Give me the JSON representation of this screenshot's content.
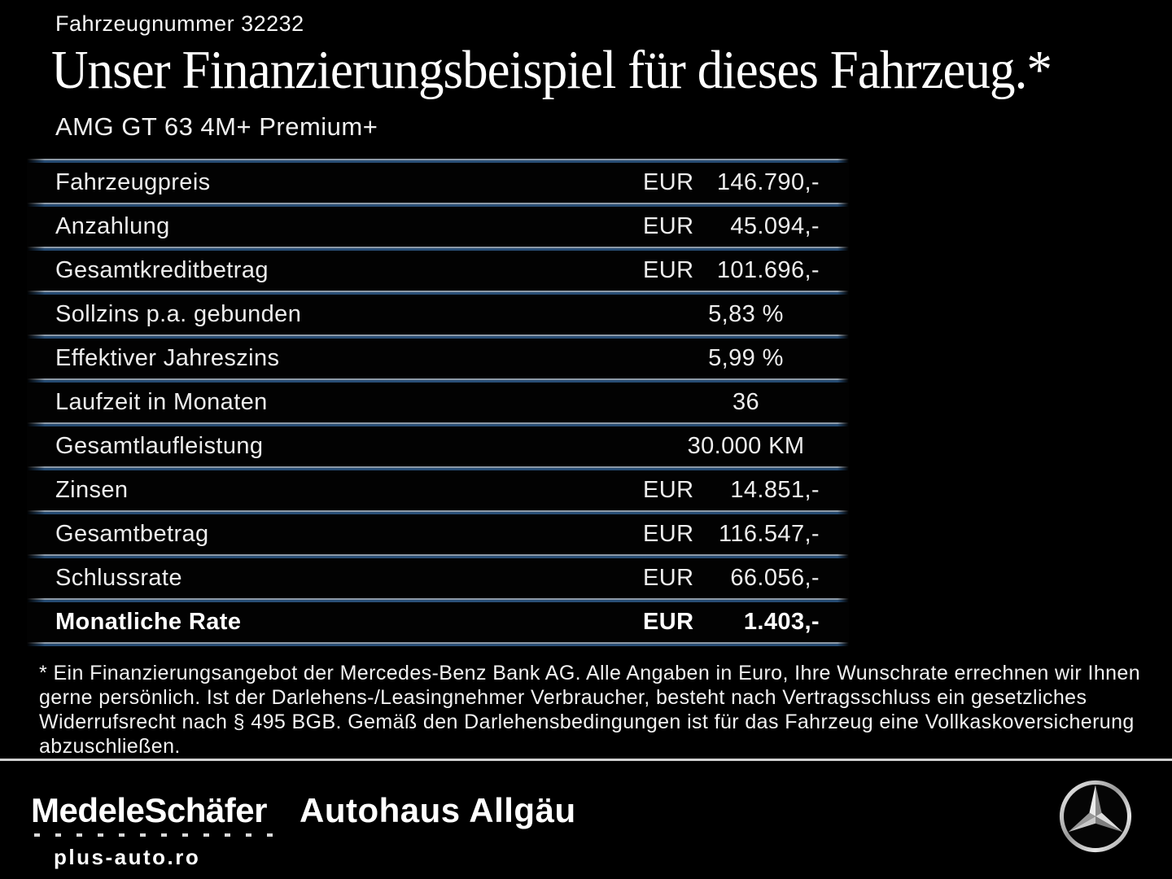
{
  "page": {
    "vehicle_number": "Fahrzeugnummer 32232",
    "title": "Unser Finanzierungsbeispiel für dieses Fahrzeug.*",
    "model": "AMG GT 63 4M+ Premium+"
  },
  "financing_table": {
    "rows": [
      {
        "label": "Fahrzeugpreis",
        "currency": "EUR",
        "value": "146.790,-",
        "emphasis": false
      },
      {
        "label": "Anzahlung",
        "currency": "EUR",
        "value": "45.094,-",
        "emphasis": false
      },
      {
        "label": "Gesamtkreditbetrag",
        "currency": "EUR",
        "value": "101.696,-",
        "emphasis": false
      },
      {
        "label": "Sollzins p.a. gebunden",
        "currency": "",
        "value": "5,83 %",
        "emphasis": false
      },
      {
        "label": "Effektiver Jahreszins",
        "currency": "",
        "value": "5,99 %",
        "emphasis": false
      },
      {
        "label": "Laufzeit in Monaten",
        "currency": "",
        "value": "36",
        "emphasis": false
      },
      {
        "label": "Gesamtlaufleistung",
        "currency": "",
        "value": "30.000 KM",
        "emphasis": false
      },
      {
        "label": "Zinsen",
        "currency": "EUR",
        "value": "14.851,-",
        "emphasis": false
      },
      {
        "label": "Gesamtbetrag",
        "currency": "EUR",
        "value": "116.547,-",
        "emphasis": false
      },
      {
        "label": "Schlussrate",
        "currency": "EUR",
        "value": "66.056,-",
        "emphasis": false
      },
      {
        "label": "Monatliche Rate",
        "currency": "EUR",
        "value": "1.403,-",
        "emphasis": true
      }
    ]
  },
  "footnote": "* Ein Finanzierungsangebot der Mercedes-Benz Bank AG. Alle Angaben in Euro, Ihre Wunschrate errechnen wir Ihnen gerne persönlich. Ist der Darlehens-/Leasingnehmer Verbraucher, besteht nach Vertragsschluss ein gesetzliches Widerrufsrecht nach § 495 BGB. Gemäß den Darlehensbedingungen ist für das Fahrzeug eine Vollkaskoversicherung abzuschließen.",
  "footer": {
    "dealer_logo_1": "MedeleSchäfer",
    "dealer_logo_2": "Autohaus Allgäu",
    "watermark": "plus-auto.ro",
    "brand_logo": "mercedes-star-icon"
  },
  "colors": {
    "background": "#000000",
    "text": "#f2f2f2",
    "separator_highlight": "#8d99a6",
    "separator_blue": "#264b72",
    "footer_divider": "#cfcfcf"
  }
}
